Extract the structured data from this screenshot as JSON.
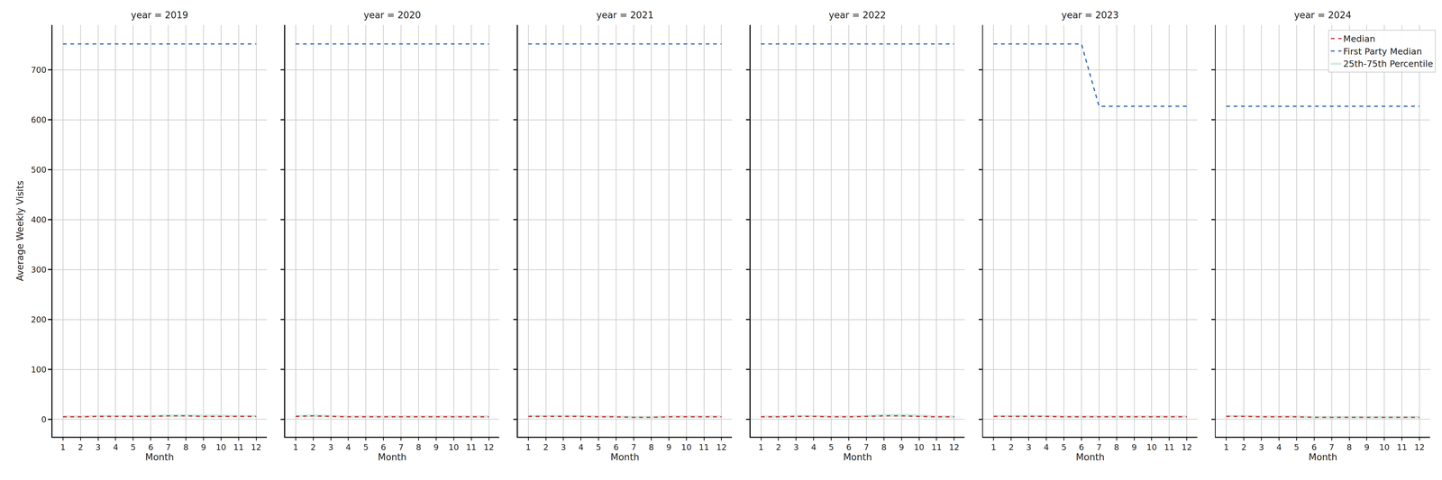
{
  "chart_data": [
    {
      "type": "line",
      "title": "year = 2019",
      "x_label": "Month",
      "y_label": "Average Weekly Visits",
      "x": [
        1,
        2,
        3,
        4,
        5,
        6,
        7,
        8,
        9,
        10,
        11,
        12
      ],
      "xlim": [
        0.4,
        12.6
      ],
      "xticks": [
        1,
        2,
        3,
        4,
        5,
        6,
        7,
        8,
        9,
        10,
        11,
        12
      ],
      "ylim": [
        -35,
        790
      ],
      "yticks": [
        0,
        100,
        200,
        300,
        400,
        500,
        600,
        700
      ],
      "grid": true,
      "tick_labels": true,
      "series": [
        {
          "name": "Median",
          "color": "#d0393e",
          "line_style": "dashed",
          "values": [
            5,
            5,
            6,
            6,
            6,
            6,
            7,
            7,
            6,
            6,
            6,
            6
          ]
        },
        {
          "name": "First Party Median",
          "color": "#3a6bb4",
          "line_style": "dashed",
          "values": [
            752,
            752,
            752,
            752,
            752,
            752,
            752,
            752,
            752,
            752,
            752,
            752
          ]
        },
        {
          "name": "25th-75th Percentile",
          "type": "band",
          "color": "#d3ece2",
          "lower": [
            3,
            3,
            4,
            4,
            4,
            4,
            4,
            5,
            4,
            4,
            4,
            4
          ],
          "upper": [
            8,
            8,
            9,
            9,
            9,
            9,
            10,
            10,
            10,
            10,
            9,
            9
          ]
        }
      ]
    },
    {
      "type": "line",
      "title": "year = 2020",
      "x_label": "Month",
      "x": [
        1,
        2,
        3,
        4,
        5,
        6,
        7,
        8,
        9,
        10,
        11,
        12
      ],
      "xlim": [
        0.4,
        12.6
      ],
      "xticks": [
        1,
        2,
        3,
        4,
        5,
        6,
        7,
        8,
        9,
        10,
        11,
        12
      ],
      "ylim": [
        -35,
        790
      ],
      "yticks": [
        0,
        100,
        200,
        300,
        400,
        500,
        600,
        700
      ],
      "grid": true,
      "tick_labels": "x",
      "series": [
        {
          "name": "Median",
          "color": "#d0393e",
          "line_style": "dashed",
          "values": [
            6,
            7,
            6,
            5,
            5,
            5,
            5,
            5,
            5,
            5,
            5,
            5
          ]
        },
        {
          "name": "First Party Median",
          "color": "#3a6bb4",
          "line_style": "dashed",
          "values": [
            752,
            752,
            752,
            752,
            752,
            752,
            752,
            752,
            752,
            752,
            752,
            752
          ]
        },
        {
          "name": "25th-75th Percentile",
          "type": "band",
          "color": "#d3ece2",
          "lower": [
            4,
            4,
            4,
            3,
            3,
            3,
            3,
            3,
            3,
            3,
            3,
            3
          ],
          "upper": [
            9,
            10,
            9,
            8,
            8,
            8,
            8,
            8,
            8,
            8,
            8,
            8
          ]
        }
      ]
    },
    {
      "type": "line",
      "title": "year = 2021",
      "x_label": "Month",
      "x": [
        1,
        2,
        3,
        4,
        5,
        6,
        7,
        8,
        9,
        10,
        11,
        12
      ],
      "xlim": [
        0.4,
        12.6
      ],
      "xticks": [
        1,
        2,
        3,
        4,
        5,
        6,
        7,
        8,
        9,
        10,
        11,
        12
      ],
      "ylim": [
        -35,
        790
      ],
      "yticks": [
        0,
        100,
        200,
        300,
        400,
        500,
        600,
        700
      ],
      "grid": true,
      "tick_labels": "x",
      "series": [
        {
          "name": "Median",
          "color": "#d0393e",
          "line_style": "dashed",
          "values": [
            6,
            6,
            6,
            6,
            5,
            5,
            4,
            4,
            5,
            5,
            5,
            5
          ]
        },
        {
          "name": "First Party Median",
          "color": "#3a6bb4",
          "line_style": "dashed",
          "values": [
            752,
            752,
            752,
            752,
            752,
            752,
            752,
            752,
            752,
            752,
            752,
            752
          ]
        },
        {
          "name": "25th-75th Percentile",
          "type": "band",
          "color": "#d3ece2",
          "lower": [
            4,
            4,
            4,
            4,
            3,
            3,
            2,
            2,
            3,
            3,
            3,
            3
          ],
          "upper": [
            9,
            9,
            9,
            9,
            8,
            8,
            7,
            7,
            8,
            8,
            8,
            8
          ]
        }
      ]
    },
    {
      "type": "line",
      "title": "year = 2022",
      "x_label": "Month",
      "x": [
        1,
        2,
        3,
        4,
        5,
        6,
        7,
        8,
        9,
        10,
        11,
        12
      ],
      "xlim": [
        0.4,
        12.6
      ],
      "xticks": [
        1,
        2,
        3,
        4,
        5,
        6,
        7,
        8,
        9,
        10,
        11,
        12
      ],
      "ylim": [
        -35,
        790
      ],
      "yticks": [
        0,
        100,
        200,
        300,
        400,
        500,
        600,
        700
      ],
      "grid": true,
      "tick_labels": "x",
      "series": [
        {
          "name": "Median",
          "color": "#d0393e",
          "line_style": "dashed",
          "values": [
            5,
            5,
            6,
            6,
            5,
            5,
            6,
            7,
            7,
            6,
            5,
            5
          ]
        },
        {
          "name": "First Party Median",
          "color": "#3a6bb4",
          "line_style": "dashed",
          "values": [
            752,
            752,
            752,
            752,
            752,
            752,
            752,
            752,
            752,
            752,
            752,
            752
          ]
        },
        {
          "name": "25th-75th Percentile",
          "type": "band",
          "color": "#d3ece2",
          "lower": [
            3,
            3,
            4,
            4,
            3,
            3,
            4,
            5,
            5,
            4,
            3,
            3
          ],
          "upper": [
            8,
            8,
            9,
            9,
            8,
            8,
            9,
            11,
            11,
            10,
            8,
            8
          ]
        }
      ]
    },
    {
      "type": "line",
      "title": "year = 2023",
      "x_label": "Month",
      "x": [
        1,
        2,
        3,
        4,
        5,
        6,
        7,
        8,
        9,
        10,
        11,
        12
      ],
      "xlim": [
        0.4,
        12.6
      ],
      "xticks": [
        1,
        2,
        3,
        4,
        5,
        6,
        7,
        8,
        9,
        10,
        11,
        12
      ],
      "ylim": [
        -35,
        790
      ],
      "yticks": [
        0,
        100,
        200,
        300,
        400,
        500,
        600,
        700
      ],
      "grid": true,
      "tick_labels": "x",
      "series": [
        {
          "name": "Median",
          "color": "#d0393e",
          "line_style": "dashed",
          "values": [
            6,
            6,
            6,
            6,
            5,
            5,
            5,
            5,
            5,
            5,
            5,
            5
          ]
        },
        {
          "name": "First Party Median",
          "color": "#3a6bb4",
          "line_style": "dashed",
          "values": [
            752,
            752,
            752,
            752,
            752,
            752,
            627,
            627,
            627,
            627,
            627,
            627
          ]
        },
        {
          "name": "25th-75th Percentile",
          "type": "band",
          "color": "#d3ece2",
          "lower": [
            4,
            4,
            4,
            4,
            3,
            3,
            3,
            3,
            3,
            3,
            3,
            3
          ],
          "upper": [
            9,
            9,
            9,
            9,
            8,
            8,
            8,
            8,
            8,
            8,
            8,
            8
          ]
        }
      ]
    },
    {
      "type": "line",
      "title": "year = 2024",
      "x_label": "Month",
      "x": [
        1,
        2,
        3,
        4,
        5,
        6,
        7,
        8,
        9,
        10,
        11,
        12
      ],
      "xlim": [
        0.4,
        12.6
      ],
      "xticks": [
        1,
        2,
        3,
        4,
        5,
        6,
        7,
        8,
        9,
        10,
        11,
        12
      ],
      "ylim": [
        -35,
        790
      ],
      "yticks": [
        0,
        100,
        200,
        300,
        400,
        500,
        600,
        700
      ],
      "grid": true,
      "tick_labels": "x",
      "legend": "upper right",
      "series": [
        {
          "name": "Median",
          "color": "#d0393e",
          "line_style": "dashed",
          "values": [
            6,
            6,
            5,
            5,
            5,
            4,
            4,
            4,
            4,
            4,
            4,
            4
          ]
        },
        {
          "name": "First Party Median",
          "color": "#3a6bb4",
          "line_style": "dashed",
          "values": [
            627,
            627,
            627,
            627,
            627,
            627,
            627,
            627,
            627,
            627,
            627,
            627
          ]
        },
        {
          "name": "25th-75th Percentile",
          "type": "band",
          "color": "#d3ece2",
          "lower": [
            4,
            4,
            3,
            3,
            3,
            2,
            2,
            2,
            2,
            2,
            2,
            2
          ],
          "upper": [
            9,
            9,
            8,
            8,
            8,
            7,
            7,
            7,
            7,
            7,
            7,
            7
          ]
        }
      ]
    }
  ]
}
